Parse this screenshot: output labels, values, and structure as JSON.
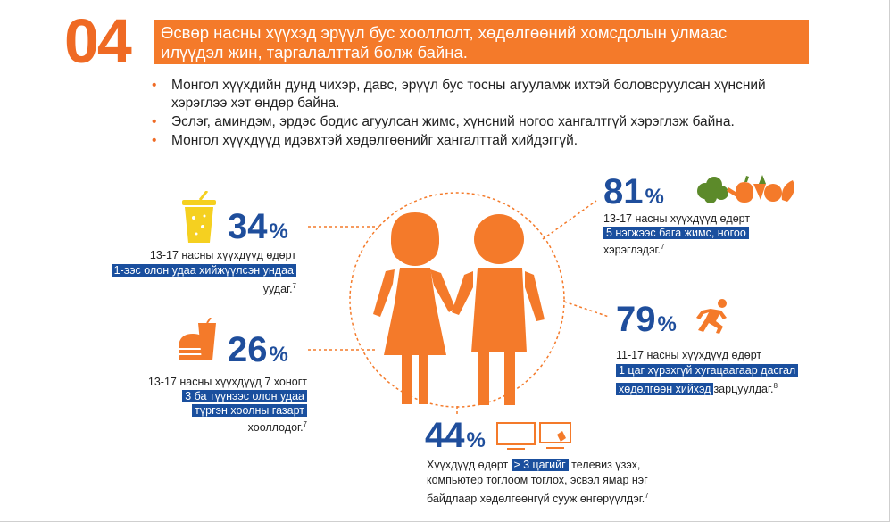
{
  "header": {
    "number": "04",
    "banner_line1": "Өсвөр насны хүүхэд эрүүл бус хооллолт, хөдөлгөөний хомсдолын улмаас",
    "banner_line2": "илүүдэл жин, таргалалттай болж байна."
  },
  "bullets": [
    "Монгол хүүхдийн дунд чихэр, давс, эрүүл бус тосны агууламж ихтэй боловсруулсан хүнсний хэрэглээ хэт өндөр байна.",
    "Эслэг, аминдэм, эрдэс бодис агуулсан жимс, хүнсний ногоо хангалтгүй хэрэглэж байна.",
    "Монгол хүүхдүүд идэвхтэй хөдөлгөөнийг хангалттай хийдэггүй."
  ],
  "stats": {
    "drinks": {
      "value": "34",
      "sign": "%",
      "line1": "13-17 насны хүүхдүүд өдөрт",
      "highlight": "1-ээс олон удаа хийжүүлсэн ундаа",
      "line3": "уудаг.",
      "ref": "7"
    },
    "fastfood": {
      "value": "26",
      "sign": "%",
      "line1": "13-17 насны хүүхдүүд 7 хоногт",
      "highlight1": "3 ба түүнээс олон удаа",
      "highlight2": "түргэн хоолны газарт",
      "line4": "хооллодог.",
      "ref": "7"
    },
    "vegetables": {
      "value": "81",
      "sign": "%",
      "line1": "13-17 насны хүүхдүүд өдөрт",
      "highlight": "5 нэгжээс бага жимс, ногоо",
      "line3": "хэрэглэдэг.",
      "ref": "7"
    },
    "exercise": {
      "value": "79",
      "sign": "%",
      "line1": "11-17 насны хүүхдүүд өдөрт",
      "highlight1": "1 цаг хүрэхгүй хугацаагаар дасгал",
      "highlight2": "хөдөлгөөн хийхэд",
      "line3": "зарцуулдаг.",
      "ref": "8"
    },
    "screen": {
      "value": "44",
      "sign": "%",
      "line1_pre": "Хүүхдүүд өдөрт",
      "highlight": "≥ 3 цагийг",
      "line1_post": "телевиз үзэх,",
      "line2": "компьютер тоглоом тоглох, эсвэл ямар нэг",
      "line3": "байдлаар хөдөлгөөнгүй сууж өнгөрүүлдэг.",
      "ref": "7"
    }
  },
  "colors": {
    "orange": "#f47a2a",
    "blue": "#1f4e9c",
    "highlight": "#1a4f9e",
    "yellow": "#f5d020"
  },
  "icons": [
    "soft-drink-icon",
    "fast-food-icon",
    "vegetables-icon",
    "running-person-icon",
    "tv-icon",
    "computer-icon",
    "boy-girl-icon"
  ]
}
